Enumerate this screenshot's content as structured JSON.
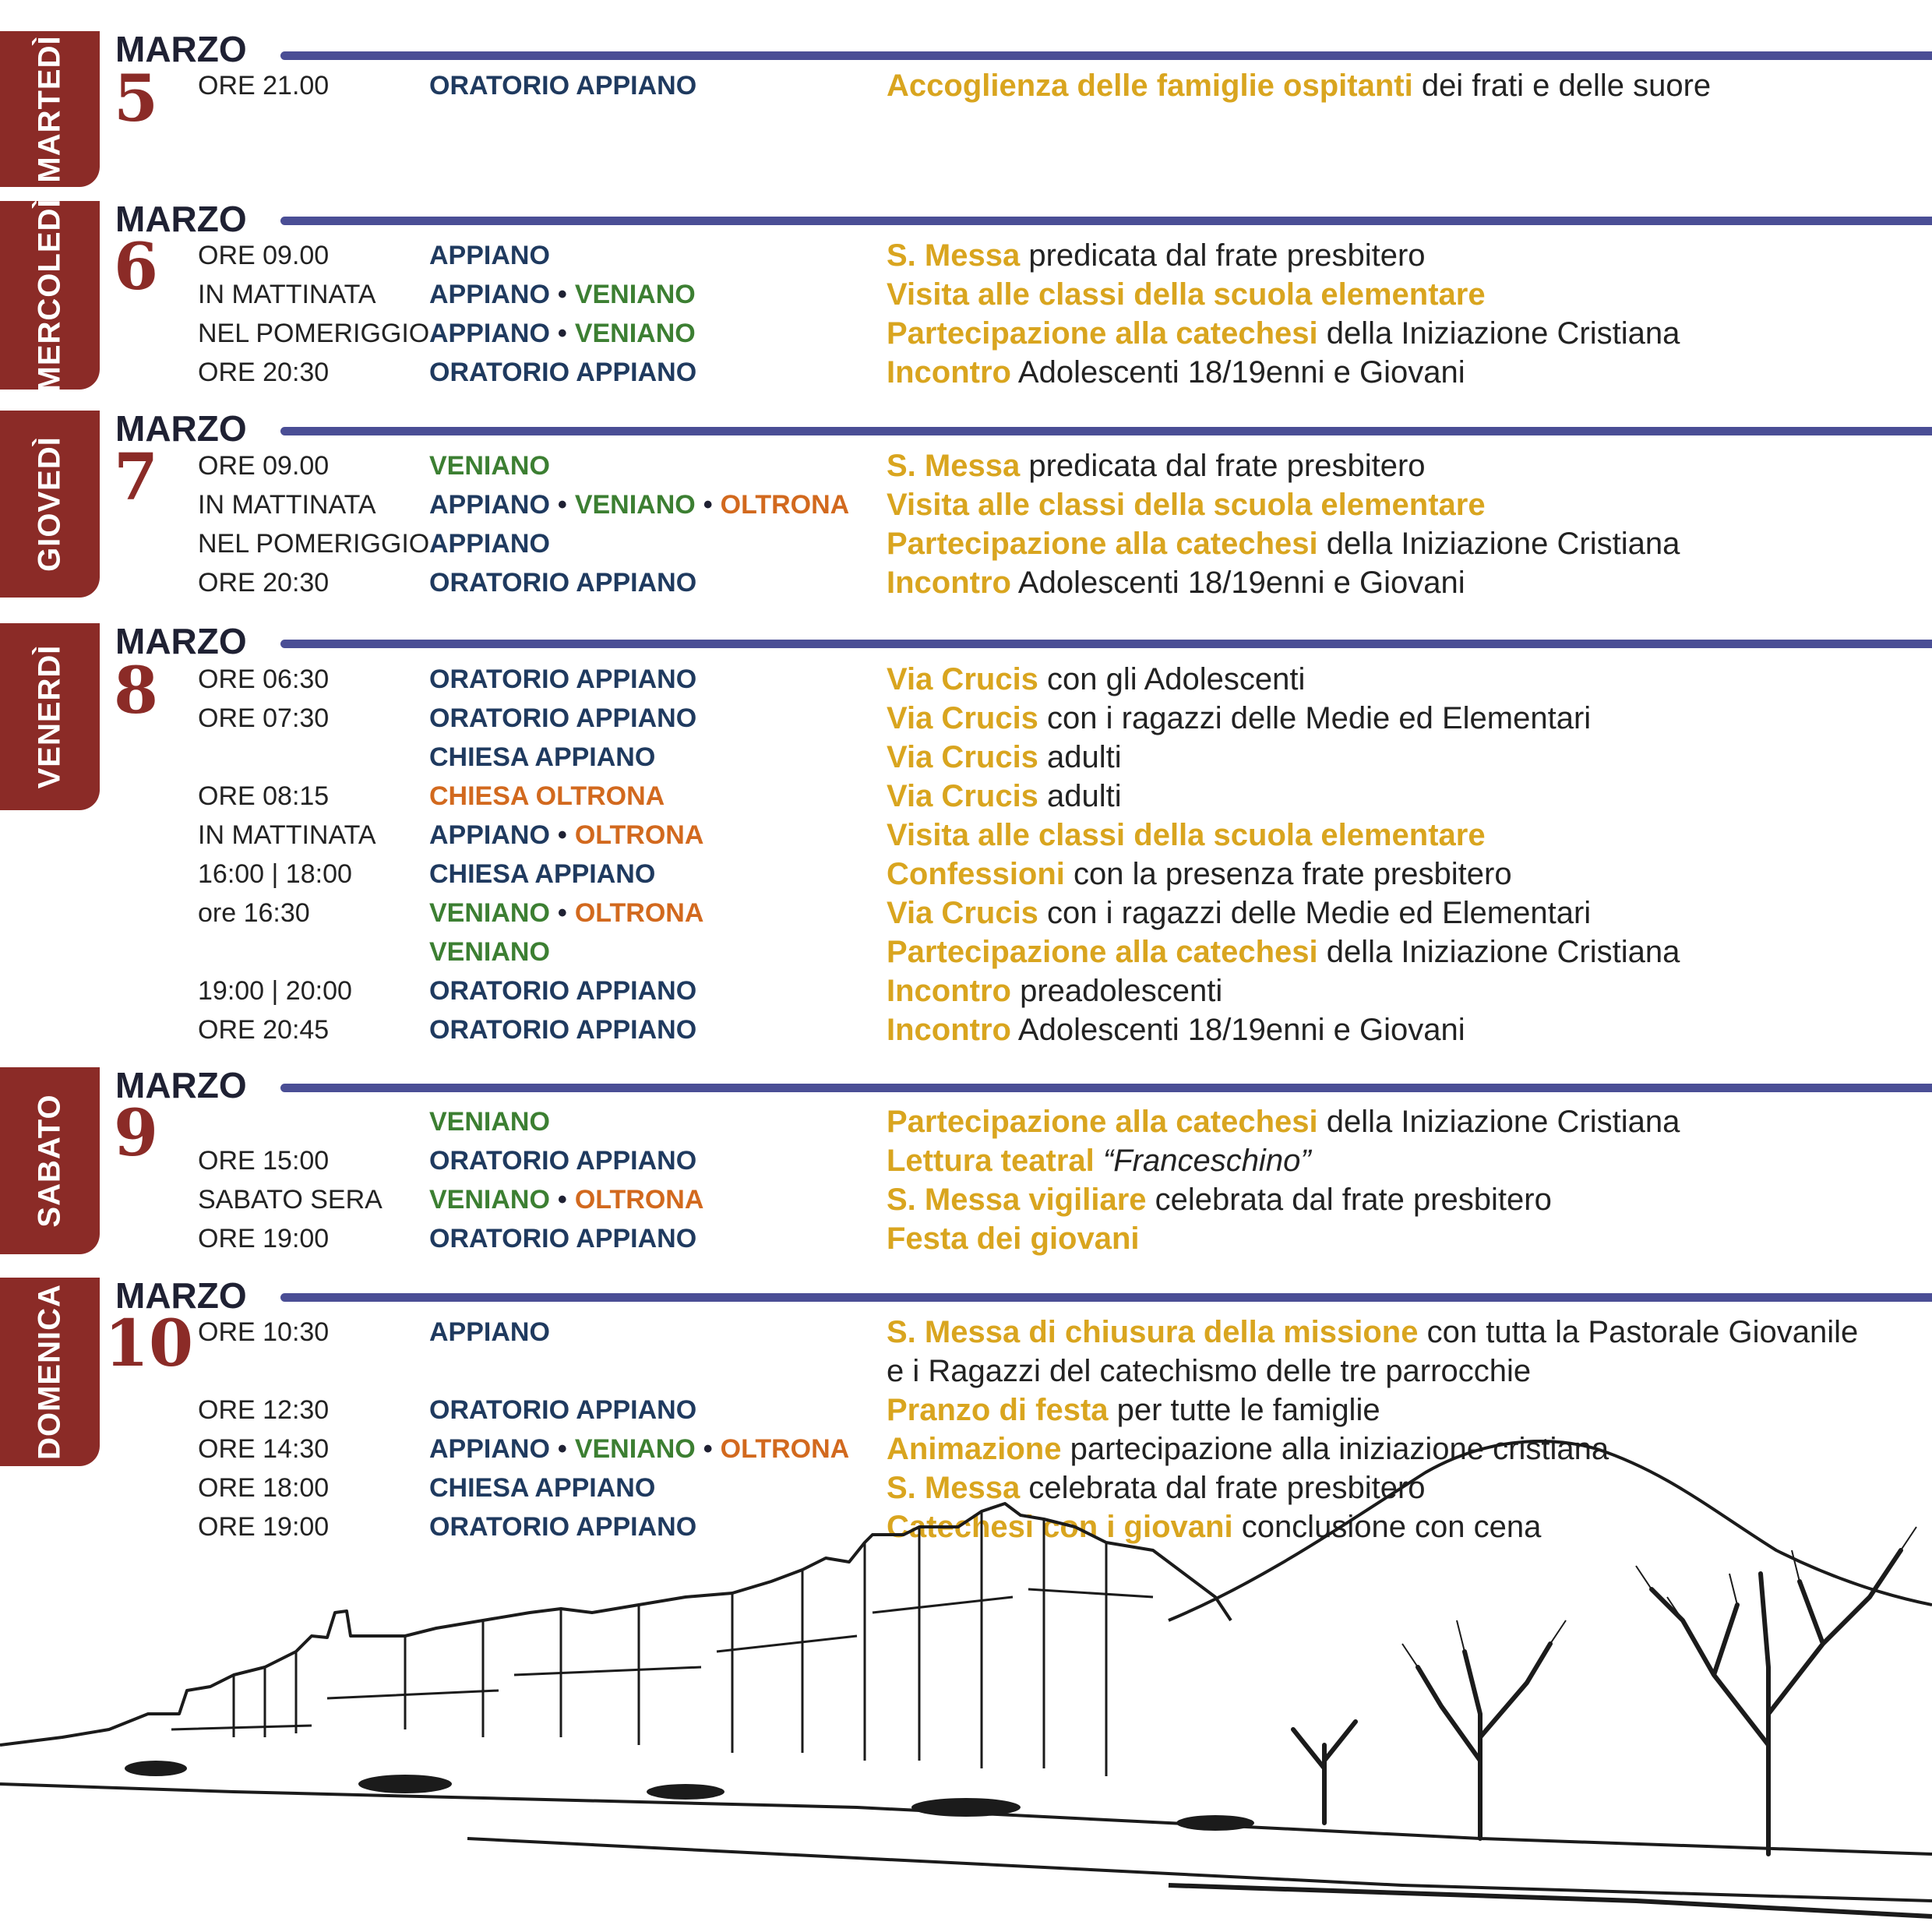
{
  "days": [
    {
      "weekday": "MARTEDÌ",
      "month": "MARZO",
      "day": "5",
      "entries": [
        {
          "time": "ORE 21.00",
          "places": [
            {
              "name": "ORATORIO APPIANO",
              "c": "appiano"
            }
          ],
          "highlight": "Accoglienza delle famiglie ospitanti",
          "rest": " dei frati e delle suore"
        }
      ]
    },
    {
      "weekday": "MERCOLEDÌ",
      "month": "MARZO",
      "day": "6",
      "entries": [
        {
          "time": "ORE 09.00",
          "places": [
            {
              "name": "APPIANO",
              "c": "appiano"
            }
          ],
          "highlight": "S. Messa",
          "rest": " predicata dal frate presbitero"
        },
        {
          "time": "IN MATTINATA",
          "places": [
            {
              "name": "APPIANO",
              "c": "appiano"
            },
            {
              "name": "VENIANO",
              "c": "veniano"
            }
          ],
          "highlight": "Visita alle classi della scuola elementare",
          "rest": ""
        },
        {
          "time": "NEL POMERIGGIO",
          "places": [
            {
              "name": "APPIANO",
              "c": "appiano"
            },
            {
              "name": "VENIANO",
              "c": "veniano"
            }
          ],
          "highlight": "Partecipazione alla catechesi",
          "rest": " della Iniziazione Cristiana"
        },
        {
          "time": "ORE 20:30",
          "places": [
            {
              "name": "ORATORIO APPIANO",
              "c": "appiano"
            }
          ],
          "highlight": "Incontro",
          "rest": " Adolescenti 18/19enni e Giovani"
        }
      ]
    },
    {
      "weekday": "GIOVEDÌ",
      "month": "MARZO",
      "day": "7",
      "entries": [
        {
          "time": "ORE 09.00",
          "places": [
            {
              "name": "VENIANO",
              "c": "veniano"
            }
          ],
          "highlight": "S. Messa",
          "rest": " predicata dal frate presbitero"
        },
        {
          "time": "IN MATTINATA",
          "places": [
            {
              "name": "APPIANO",
              "c": "appiano"
            },
            {
              "name": "VENIANO",
              "c": "veniano"
            },
            {
              "name": "OLTRONA",
              "c": "oltrona"
            }
          ],
          "highlight": "Visita alle classi della scuola elementare",
          "rest": ""
        },
        {
          "time": "NEL POMERIGGIO",
          "places": [
            {
              "name": "APPIANO",
              "c": "appiano"
            }
          ],
          "highlight": "Partecipazione alla catechesi",
          "rest": " della Iniziazione Cristiana"
        },
        {
          "time": "ORE 20:30",
          "places": [
            {
              "name": "ORATORIO APPIANO",
              "c": "appiano"
            }
          ],
          "highlight": "Incontro",
          "rest": " Adolescenti 18/19enni e Giovani"
        }
      ]
    },
    {
      "weekday": "VENERDÌ",
      "month": "MARZO",
      "day": "8",
      "entries": [
        {
          "time": "ORE 06:30",
          "places": [
            {
              "name": "ORATORIO APPIANO",
              "c": "appiano"
            }
          ],
          "highlight": "Via Crucis",
          "rest": " con gli Adolescenti"
        },
        {
          "time": "ORE 07:30",
          "places": [
            {
              "name": "ORATORIO APPIANO",
              "c": "appiano"
            }
          ],
          "highlight": "Via Crucis",
          "rest": " con i ragazzi delle Medie ed Elementari"
        },
        {
          "time": "",
          "places": [
            {
              "name": "CHIESA APPIANO",
              "c": "appiano"
            }
          ],
          "highlight": "Via Crucis",
          "rest": " adulti"
        },
        {
          "time": "ORE 08:15",
          "places": [
            {
              "name": "CHIESA OLTRONA",
              "c": "oltrona"
            }
          ],
          "highlight": "Via Crucis",
          "rest": " adulti"
        },
        {
          "time": "IN MATTINATA",
          "places": [
            {
              "name": "APPIANO",
              "c": "appiano"
            },
            {
              "name": "OLTRONA",
              "c": "oltrona"
            }
          ],
          "highlight": "Visita alle classi della scuola elementare",
          "rest": ""
        },
        {
          "time": "16:00 | 18:00",
          "places": [
            {
              "name": "CHIESA APPIANO",
              "c": "appiano"
            }
          ],
          "highlight": "Confessioni",
          "rest": " con la presenza frate presbitero"
        },
        {
          "time": "ore 16:30",
          "places": [
            {
              "name": "VENIANO",
              "c": "veniano"
            },
            {
              "name": "OLTRONA",
              "c": "oltrona"
            }
          ],
          "highlight": "Via Crucis",
          "rest": " con i ragazzi delle Medie ed Elementari"
        },
        {
          "time": "",
          "places": [
            {
              "name": "VENIANO",
              "c": "veniano"
            }
          ],
          "highlight": "Partecipazione alla catechesi",
          "rest": " della Iniziazione Cristiana"
        },
        {
          "time": "19:00 | 20:00",
          "places": [
            {
              "name": "ORATORIO APPIANO",
              "c": "appiano"
            }
          ],
          "highlight": "Incontro",
          "rest": " preadolescenti"
        },
        {
          "time": "ORE 20:45",
          "places": [
            {
              "name": "ORATORIO APPIANO",
              "c": "appiano"
            }
          ],
          "highlight": "Incontro",
          "rest": " Adolescenti 18/19enni e Giovani"
        }
      ]
    },
    {
      "weekday": "SABATO",
      "month": "MARZO",
      "day": "9",
      "entries": [
        {
          "time": "",
          "places": [
            {
              "name": "VENIANO",
              "c": "veniano"
            }
          ],
          "highlight": "Partecipazione alla catechesi",
          "rest": " della Iniziazione Cristiana"
        },
        {
          "time": "ORE 15:00",
          "places": [
            {
              "name": "ORATORIO APPIANO",
              "c": "appiano"
            }
          ],
          "highlight": "Lettura teatral",
          "rest": " ",
          "italic": "“Franceschino”"
        },
        {
          "time": "SABATO SERA",
          "places": [
            {
              "name": "VENIANO",
              "c": "veniano"
            },
            {
              "name": "OLTRONA",
              "c": "oltrona"
            }
          ],
          "highlight": "S. Messa vigiliare",
          "rest": " celebrata dal frate presbitero"
        },
        {
          "time": "ORE 19:00",
          "places": [
            {
              "name": "ORATORIO APPIANO",
              "c": "appiano"
            }
          ],
          "highlight": "Festa dei giovani",
          "rest": ""
        }
      ]
    },
    {
      "weekday": "DOMENICA",
      "month": "MARZO",
      "day": "10",
      "entries": [
        {
          "time": "ORE 10:30",
          "places": [
            {
              "name": "APPIANO",
              "c": "appiano"
            }
          ],
          "highlight": "S. Messa di chiusura della missione",
          "rest": " con tutta la Pastorale Giovanile"
        },
        {
          "time": "",
          "places": [],
          "highlight": "",
          "rest": "e i Ragazzi del catechismo delle tre parrocchie"
        },
        {
          "time": "ORE 12:30",
          "places": [
            {
              "name": "ORATORIO APPIANO",
              "c": "appiano"
            }
          ],
          "highlight": "Pranzo di festa",
          "rest": " per tutte le famiglie"
        },
        {
          "time": "ORE 14:30",
          "places": [
            {
              "name": "APPIANO",
              "c": "appiano"
            },
            {
              "name": "VENIANO",
              "c": "veniano"
            },
            {
              "name": "OLTRONA",
              "c": "oltrona"
            }
          ],
          "highlight": "Animazione",
          "rest": " partecipazione alla iniziazione cristiana"
        },
        {
          "time": "ORE 18:00",
          "places": [
            {
              "name": "CHIESA APPIANO",
              "c": "appiano"
            }
          ],
          "highlight": "S. Messa",
          "rest": " celebrata dal frate presbitero"
        },
        {
          "time": "ORE 19:00",
          "places": [
            {
              "name": "ORATORIO APPIANO",
              "c": "appiano"
            }
          ],
          "highlight": "Catechesi con i giovani",
          "rest": " conclusione con cena"
        }
      ]
    }
  ],
  "separator": "•",
  "colors": {
    "tab": "#8b2b27",
    "rule": "#4a4e95",
    "highlight": "#d9a51f",
    "appiano": "#1f3a5f",
    "veniano": "#3c7f32",
    "oltrona": "#d2691e"
  }
}
